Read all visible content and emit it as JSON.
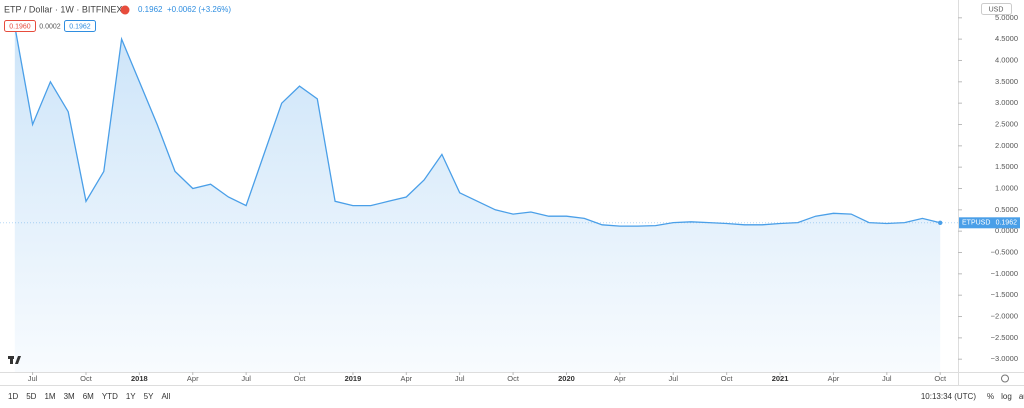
{
  "chart_data": {
    "type": "area",
    "title": "ETP / Dollar · 1W · BITFINEX",
    "header_price": "0.1962",
    "header_change": "+0.0062 (+3.26%)",
    "header_boxes": [
      "0.1960",
      "0.0002",
      "0.1962"
    ],
    "currency": "USD",
    "x": [
      "2017-06",
      "2017-07",
      "2017-08",
      "2017-09",
      "2017-10",
      "2017-11",
      "2017-12",
      "2018-01",
      "2018-02",
      "2018-03",
      "2018-04",
      "2018-05",
      "2018-06",
      "2018-07",
      "2018-08",
      "2018-09",
      "2018-10",
      "2018-11",
      "2018-12",
      "2019-01",
      "2019-02",
      "2019-03",
      "2019-04",
      "2019-05",
      "2019-06",
      "2019-07",
      "2019-08",
      "2019-09",
      "2019-10",
      "2019-11",
      "2019-12",
      "2020-01",
      "2020-02",
      "2020-03",
      "2020-04",
      "2020-05",
      "2020-06",
      "2020-07",
      "2020-08",
      "2020-09",
      "2020-10",
      "2020-11",
      "2020-12",
      "2021-01",
      "2021-02",
      "2021-03",
      "2021-04",
      "2021-05",
      "2021-06",
      "2021-07",
      "2021-08",
      "2021-09",
      "2021-10"
    ],
    "series": [
      {
        "name": "ETPUSD",
        "color": "#4a9fe8",
        "values": [
          4.8,
          2.5,
          3.5,
          2.8,
          0.7,
          1.4,
          4.5,
          3.5,
          2.5,
          1.4,
          1.0,
          1.1,
          0.8,
          0.6,
          1.8,
          3.0,
          3.4,
          3.1,
          0.7,
          0.6,
          0.6,
          0.7,
          0.8,
          1.2,
          1.8,
          0.9,
          0.7,
          0.5,
          0.4,
          0.45,
          0.35,
          0.35,
          0.3,
          0.15,
          0.12,
          0.12,
          0.13,
          0.2,
          0.22,
          0.2,
          0.18,
          0.15,
          0.15,
          0.18,
          0.2,
          0.35,
          0.42,
          0.4,
          0.2,
          0.18,
          0.2,
          0.3,
          0.1962
        ],
        "value_labels": [
          null,
          null,
          null,
          null,
          null,
          null,
          null,
          null,
          null,
          null,
          null,
          null,
          null,
          null,
          null,
          null,
          null,
          null,
          null,
          null,
          null,
          null,
          null,
          null,
          null,
          null,
          null,
          null,
          null,
          null,
          null,
          null,
          null,
          null,
          null,
          null,
          null,
          null,
          null,
          null,
          null,
          null,
          null,
          null,
          null,
          null,
          null,
          null,
          null,
          null,
          null,
          null,
          "0.1962"
        ]
      }
    ],
    "xlim": [
      "2017-05",
      "2021-11"
    ],
    "xticks": [
      {
        "value": "2017-07",
        "label": "Jul"
      },
      {
        "value": "2017-10",
        "label": "Oct"
      },
      {
        "value": "2018-01",
        "label": "2018"
      },
      {
        "value": "2018-04",
        "label": "Apr"
      },
      {
        "value": "2018-07",
        "label": "Jul"
      },
      {
        "value": "2018-10",
        "label": "Oct"
      },
      {
        "value": "2019-01",
        "label": "2019"
      },
      {
        "value": "2019-04",
        "label": "Apr"
      },
      {
        "value": "2019-07",
        "label": "Jul"
      },
      {
        "value": "2019-10",
        "label": "Oct"
      },
      {
        "value": "2020-01",
        "label": "2020"
      },
      {
        "value": "2020-04",
        "label": "Apr"
      },
      {
        "value": "2020-07",
        "label": "Jul"
      },
      {
        "value": "2020-10",
        "label": "Oct"
      },
      {
        "value": "2021-01",
        "label": "2021"
      },
      {
        "value": "2021-04",
        "label": "Apr"
      },
      {
        "value": "2021-07",
        "label": "Jul"
      },
      {
        "value": "2021-10",
        "label": "Oct"
      }
    ],
    "ylim": [
      -3.3,
      5.3
    ],
    "yticks": [
      {
        "value": 5,
        "label": "5.0000"
      },
      {
        "value": 4.5,
        "label": "4.5000"
      },
      {
        "value": 4,
        "label": "4.0000"
      },
      {
        "value": 3.5,
        "label": "3.5000"
      },
      {
        "value": 3,
        "label": "3.0000"
      },
      {
        "value": 2.5,
        "label": "2.5000"
      },
      {
        "value": 2,
        "label": "2.0000"
      },
      {
        "value": 1.5,
        "label": "1.5000"
      },
      {
        "value": 1,
        "label": "1.0000"
      },
      {
        "value": 0.5,
        "label": "0.5000"
      },
      {
        "value": 0,
        "label": "0.0000"
      },
      {
        "value": -0.5,
        "label": "−0.5000"
      },
      {
        "value": -1,
        "label": "−1.0000"
      },
      {
        "value": -1.5,
        "label": "−1.5000"
      },
      {
        "value": -2,
        "label": "−2.0000"
      },
      {
        "value": -2.5,
        "label": "−2.5000"
      },
      {
        "value": -3,
        "label": "−3.0000"
      }
    ],
    "grid": false,
    "ranges": [
      "1D",
      "5D",
      "1M",
      "3M",
      "6M",
      "YTD",
      "1Y",
      "5Y",
      "All"
    ],
    "clock": "10:13:34 (UTC)",
    "scale_options": [
      "%",
      "log",
      "auto"
    ]
  }
}
